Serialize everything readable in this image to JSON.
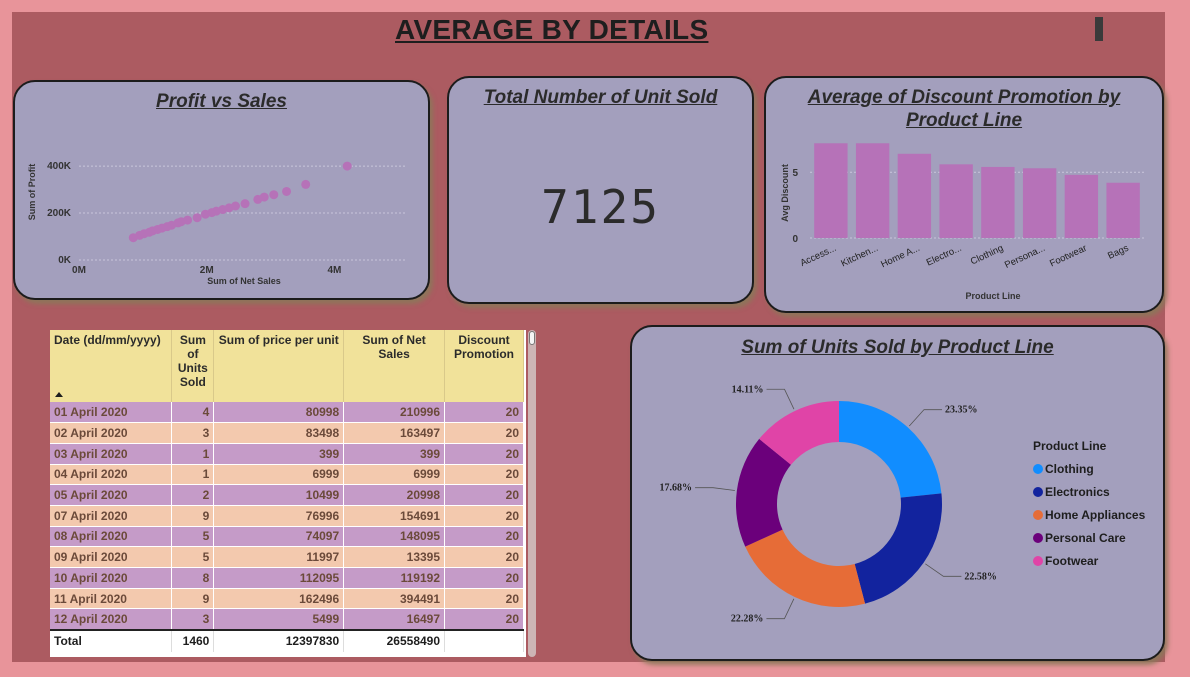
{
  "page": {
    "title": "AVERAGE BY DETAILS"
  },
  "scatter": {
    "title": "Profit vs Sales",
    "xlabel": "Sum of Net Sales",
    "ylabel": "Sum of Profit",
    "x_ticks": [
      "0M",
      "2M",
      "4M"
    ],
    "y_ticks": [
      "0K",
      "200K",
      "400K"
    ],
    "color": "#b672b8"
  },
  "kpi": {
    "title": "Total Number of Unit Sold",
    "value": "7125"
  },
  "bar": {
    "title_line1": "Average of Discount Promotion by",
    "title_line2": "Product Line",
    "xlabel": "Product Line",
    "ylabel": "Avg Discount",
    "y_ticks": [
      "0",
      "5"
    ],
    "color": "#b672b8"
  },
  "table": {
    "headers": {
      "date": "Date (dd/mm/yyyy)",
      "units": "Sum of Units Sold",
      "price": "Sum of price per unit",
      "sales": "Sum of Net Sales",
      "discount": "Discount Promotion"
    },
    "rows": [
      {
        "date": "01 April 2020",
        "units": "4",
        "price": "80998",
        "sales": "210996",
        "discount": "20"
      },
      {
        "date": "02 April 2020",
        "units": "3",
        "price": "83498",
        "sales": "163497",
        "discount": "20"
      },
      {
        "date": "03 April 2020",
        "units": "1",
        "price": "399",
        "sales": "399",
        "discount": "20"
      },
      {
        "date": "04 April 2020",
        "units": "1",
        "price": "6999",
        "sales": "6999",
        "discount": "20"
      },
      {
        "date": "05 April 2020",
        "units": "2",
        "price": "10499",
        "sales": "20998",
        "discount": "20"
      },
      {
        "date": "07 April 2020",
        "units": "9",
        "price": "76996",
        "sales": "154691",
        "discount": "20"
      },
      {
        "date": "08 April 2020",
        "units": "5",
        "price": "74097",
        "sales": "148095",
        "discount": "20"
      },
      {
        "date": "09 April 2020",
        "units": "5",
        "price": "11997",
        "sales": "13395",
        "discount": "20"
      },
      {
        "date": "10 April 2020",
        "units": "8",
        "price": "112095",
        "sales": "119192",
        "discount": "20"
      },
      {
        "date": "11 April 2020",
        "units": "9",
        "price": "162496",
        "sales": "394491",
        "discount": "20"
      },
      {
        "date": "12 April 2020",
        "units": "3",
        "price": "5499",
        "sales": "16497",
        "discount": "20"
      }
    ],
    "total": {
      "label": "Total",
      "units": "1460",
      "price": "12397830",
      "sales": "26558490",
      "discount": ""
    }
  },
  "donut": {
    "title": "Sum of Units Sold by Product Line",
    "legend_title": "Product Line"
  },
  "chart_data": [
    {
      "type": "scatter",
      "title": "Profit vs Sales",
      "xlabel": "Sum of Net Sales",
      "ylabel": "Sum of Profit",
      "xlim": [
        0,
        4400000
      ],
      "ylim": [
        0,
        460000
      ],
      "x_ticks": [
        "0M",
        "2M",
        "4M"
      ],
      "y_ticks": [
        "0K",
        "200K",
        "400K"
      ],
      "grid": true,
      "points": [
        [
          850000,
          95000
        ],
        [
          950000,
          105000
        ],
        [
          1020000,
          112000
        ],
        [
          1100000,
          118000
        ],
        [
          1150000,
          124000
        ],
        [
          1230000,
          130000
        ],
        [
          1300000,
          136000
        ],
        [
          1380000,
          142000
        ],
        [
          1450000,
          148000
        ],
        [
          1550000,
          158000
        ],
        [
          1600000,
          163000
        ],
        [
          1700000,
          170000
        ],
        [
          1850000,
          180000
        ],
        [
          1980000,
          195000
        ],
        [
          2080000,
          202000
        ],
        [
          2150000,
          208000
        ],
        [
          2250000,
          215000
        ],
        [
          2350000,
          222000
        ],
        [
          2450000,
          230000
        ],
        [
          2600000,
          240000
        ],
        [
          2800000,
          258000
        ],
        [
          2900000,
          268000
        ],
        [
          3050000,
          278000
        ],
        [
          3250000,
          292000
        ],
        [
          3550000,
          322000
        ],
        [
          4200000,
          400000
        ]
      ]
    },
    {
      "type": "bar",
      "title": "Average of Discount Promotion by Product Line",
      "xlabel": "Product Line",
      "ylabel": "Avg Discount",
      "categories": [
        "Access...",
        "Kitchen...",
        "Home A...",
        "Electro...",
        "Clothing",
        "Persona...",
        "Footwear",
        "Bags"
      ],
      "values": [
        7.2,
        7.2,
        6.4,
        5.6,
        5.4,
        5.3,
        4.8,
        4.2
      ],
      "ylim": [
        0,
        7.6
      ],
      "y_ticks": [
        "0",
        "5"
      ]
    },
    {
      "type": "pie",
      "title": "Sum of Units Sold by Product Line",
      "legend_title": "Product Line",
      "legend_position": "right",
      "series": [
        {
          "name": "Clothing",
          "value": 23.35,
          "label": "23.35%",
          "color": "#118dff"
        },
        {
          "name": "Electronics",
          "value": 22.58,
          "label": "22.58%",
          "color": "#12239e"
        },
        {
          "name": "Home Appliances",
          "value": 22.28,
          "label": "22.28%",
          "color": "#e66c37"
        },
        {
          "name": "Personal Care",
          "value": 17.68,
          "label": "17.68%",
          "color": "#6b007b"
        },
        {
          "name": "Footwear",
          "value": 14.11,
          "label": "14.11%",
          "color": "#e044a7"
        }
      ]
    }
  ]
}
